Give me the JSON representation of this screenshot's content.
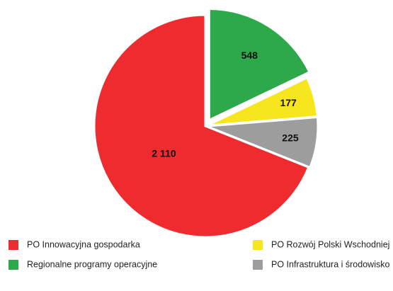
{
  "chart_data": {
    "type": "pie",
    "categories": [
      "Regionalne programy operacyjne",
      "PO Rozwój Polski Wschodniej",
      "PO Infrastruktura i środowisko",
      "PO Innowacyjna gospodarka"
    ],
    "values": [
      548,
      177,
      225,
      2110
    ],
    "value_labels": [
      "548",
      "177",
      "225",
      "2 110"
    ],
    "colors": [
      "#2da84a",
      "#f7e51d",
      "#9d9d9d",
      "#ee2b2e"
    ]
  }
}
